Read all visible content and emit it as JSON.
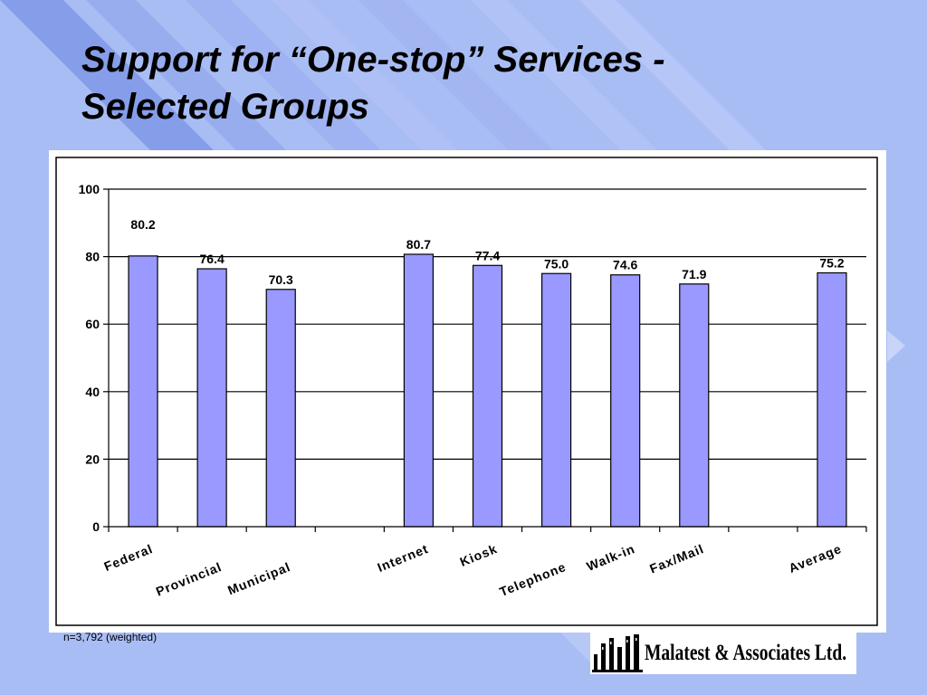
{
  "slide": {
    "title_line1": "Support for “One-stop” Services -",
    "title_line2": "Selected Groups",
    "footnote": "n=3,792 (weighted)",
    "logo_text": "Malatest & Associates Ltd.",
    "colors": {
      "background": "#a9bdf5",
      "stripe": "#7f97e8",
      "bar_fill": "#9999ff",
      "bar_stroke": "#000000"
    }
  },
  "chart_data": {
    "type": "bar",
    "title": "",
    "xlabel": "",
    "ylabel": "",
    "ylim": [
      0,
      100
    ],
    "yticks": [
      0,
      20,
      40,
      60,
      80,
      100
    ],
    "grid": true,
    "categories": [
      "Federal",
      "Provincial",
      "Municipal",
      "",
      "Internet",
      "Kiosk",
      "Telephone",
      "Walk-in",
      "Fax/Mail",
      "",
      "Average"
    ],
    "values": [
      80.2,
      76.4,
      70.3,
      null,
      80.7,
      77.4,
      75.0,
      74.6,
      71.9,
      null,
      75.2
    ],
    "value_labels": [
      "80.2",
      "76.4",
      "70.3",
      "",
      "80.7",
      "77.4",
      "75.0",
      "74.6",
      "71.9",
      "",
      "75.2"
    ]
  }
}
